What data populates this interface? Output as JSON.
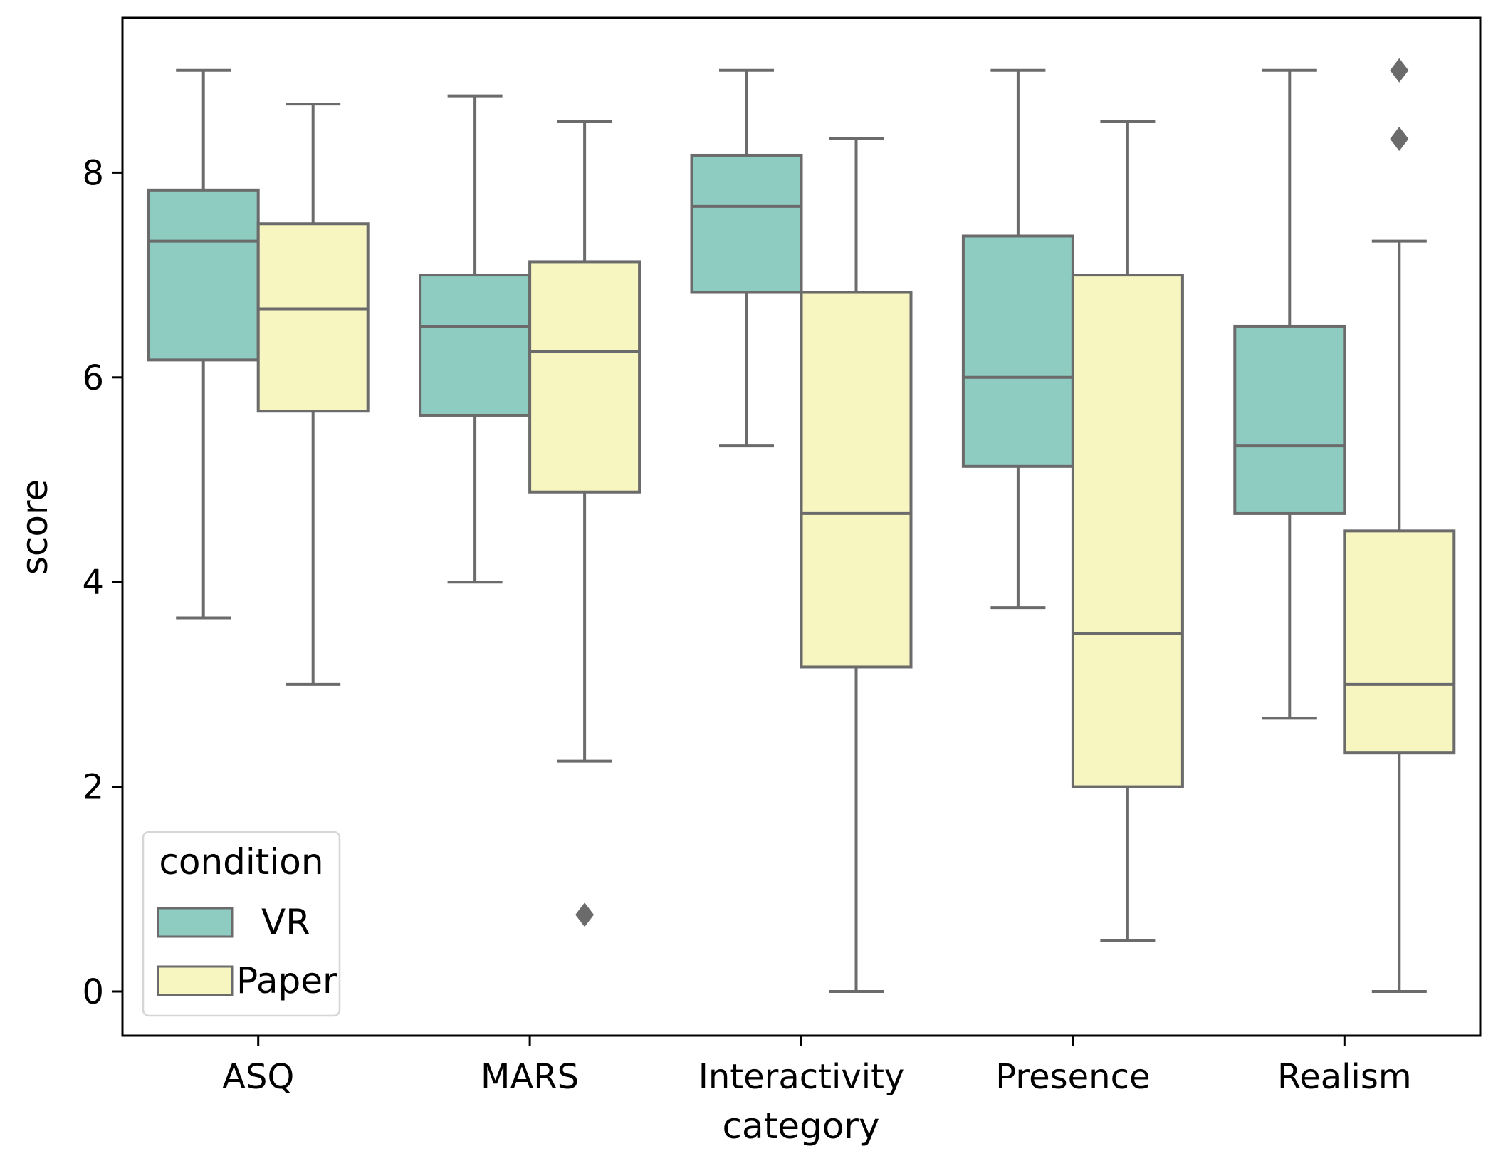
{
  "chart_data": {
    "type": "boxplot",
    "xlabel": "category",
    "ylabel": "score",
    "ylim": [
      -0.45,
      9.55
    ],
    "yticks": [
      0,
      2,
      4,
      6,
      8
    ],
    "categories": [
      "ASQ",
      "MARS",
      "Interactivity",
      "Presence",
      "Realism"
    ],
    "legend": {
      "title": "condition",
      "placement": "lower-left"
    },
    "series": [
      {
        "name": "VR",
        "color": "#8ecbc1",
        "boxes": [
          {
            "whislo": 3.65,
            "q1": 6.17,
            "med": 7.33,
            "q3": 7.83,
            "whishi": 9.0,
            "fliers": []
          },
          {
            "whislo": 4.0,
            "q1": 5.63,
            "med": 6.5,
            "q3": 7.0,
            "whishi": 8.75,
            "fliers": []
          },
          {
            "whislo": 5.33,
            "q1": 6.83,
            "med": 7.67,
            "q3": 8.17,
            "whishi": 9.0,
            "fliers": []
          },
          {
            "whislo": 3.75,
            "q1": 5.13,
            "med": 6.0,
            "q3": 7.38,
            "whishi": 9.0,
            "fliers": []
          },
          {
            "whislo": 2.67,
            "q1": 4.67,
            "med": 5.33,
            "q3": 6.5,
            "whishi": 9.0,
            "fliers": []
          }
        ]
      },
      {
        "name": "Paper",
        "color": "#f7f6c0",
        "boxes": [
          {
            "whislo": 3.0,
            "q1": 5.67,
            "med": 6.67,
            "q3": 7.5,
            "whishi": 8.67,
            "fliers": []
          },
          {
            "whislo": 2.25,
            "q1": 4.88,
            "med": 6.25,
            "q3": 7.13,
            "whishi": 8.5,
            "fliers": [
              0.75
            ]
          },
          {
            "whislo": 0.0,
            "q1": 3.17,
            "med": 4.67,
            "q3": 6.83,
            "whishi": 8.33,
            "fliers": []
          },
          {
            "whislo": 0.5,
            "q1": 2.0,
            "med": 3.5,
            "q3": 7.0,
            "whishi": 8.5,
            "fliers": []
          },
          {
            "whislo": 0.0,
            "q1": 2.33,
            "med": 3.0,
            "q3": 4.5,
            "whishi": 7.33,
            "fliers": [
              8.33,
              9.0
            ]
          }
        ]
      }
    ]
  },
  "style": {
    "line_color": "#6b6b6b",
    "axis_color": "#000000"
  }
}
